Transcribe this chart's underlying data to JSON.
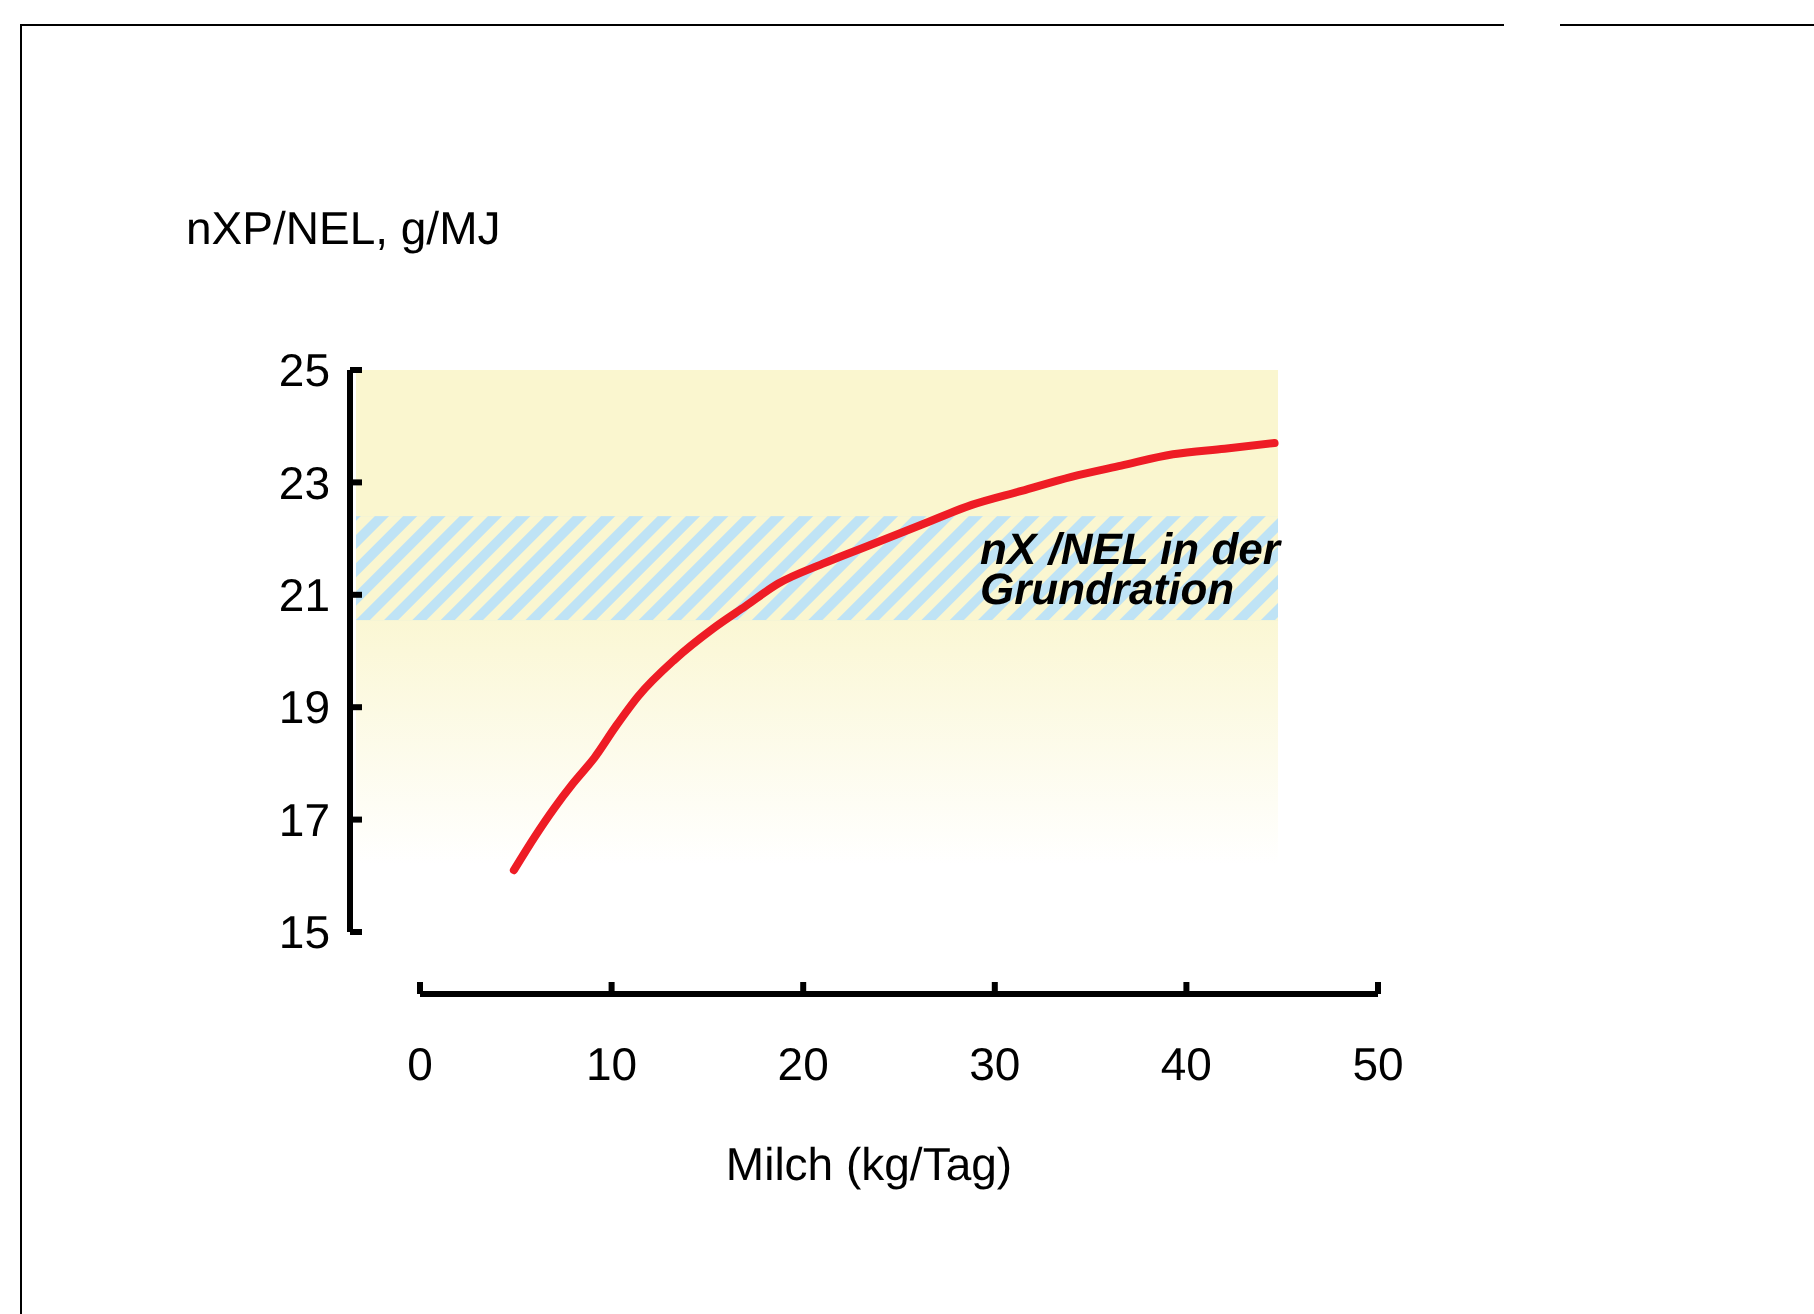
{
  "chart_data": {
    "type": "line",
    "xlabel": "Milch (kg/Tag)",
    "ylabel": "nXP/NEL, g/MJ",
    "x": [
      4.9,
      6.0,
      7.0,
      8.0,
      9.1,
      10.2,
      11.4,
      13.3,
      15.3,
      17.0,
      18.7,
      21.0,
      23.6,
      26.2,
      28.8,
      31.4,
      34.0,
      36.6,
      39.3,
      42.0,
      44.6
    ],
    "series": [
      {
        "color": "#ee1c25",
        "values": [
          16.1,
          16.7,
          17.2,
          17.65,
          18.1,
          18.65,
          19.2,
          19.85,
          20.4,
          20.8,
          21.2,
          21.55,
          21.9,
          22.25,
          22.6,
          22.85,
          23.1,
          23.3,
          23.5,
          23.6,
          23.7
        ]
      }
    ],
    "xlim": [
      0,
      50
    ],
    "xticks": [
      0,
      10,
      20,
      30,
      40,
      50
    ],
    "ylim": [
      15,
      25
    ],
    "yticks": [
      15,
      17,
      19,
      21,
      23,
      25
    ],
    "bands": [
      {
        "axis": "y",
        "from": 16.2,
        "to": 25,
        "color": "#faf6cf"
      },
      {
        "axis": "y",
        "from": 20.55,
        "to": 22.4,
        "label": "nX /NEL in der\nGrundration",
        "color": "#bfe3f5"
      }
    ],
    "grid": false,
    "marker": "none",
    "line_style": "solid"
  }
}
